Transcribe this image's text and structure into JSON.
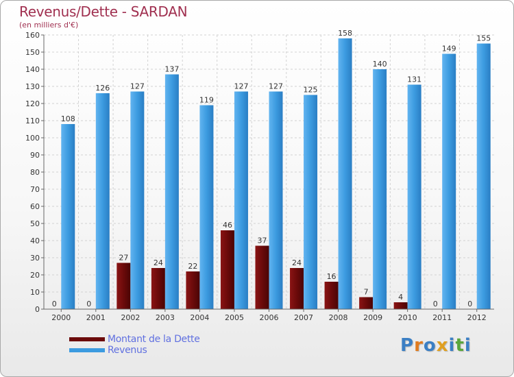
{
  "title": "Revenus/Dette - SARDAN",
  "subtitle": "(en milliers d'€)",
  "brand": {
    "text": "Proxiti",
    "colors": [
      "#3b7fc4",
      "#e07b1f",
      "#3b7fc4",
      "#e0a021",
      "#3b7fc4",
      "#5aa63b",
      "#3b7fc4"
    ]
  },
  "legend": [
    {
      "label": "Montant de la Dette",
      "color": "#6b0a0a"
    },
    {
      "label": "Revenus",
      "color": "#3c9be0"
    }
  ],
  "chart_data": {
    "type": "bar",
    "categories": [
      "2000",
      "2001",
      "2002",
      "2003",
      "2004",
      "2005",
      "2006",
      "2007",
      "2008",
      "2009",
      "2010",
      "2011",
      "2012"
    ],
    "series": [
      {
        "name": "Montant de la Dette",
        "values": [
          0,
          0,
          27,
          24,
          22,
          46,
          37,
          24,
          16,
          7,
          4,
          0,
          0
        ],
        "color": "#6b0a0a"
      },
      {
        "name": "Revenus",
        "values": [
          108,
          126,
          127,
          137,
          119,
          127,
          127,
          125,
          158,
          140,
          131,
          149,
          155
        ],
        "color": "#3c9be0"
      }
    ],
    "ylim": [
      0,
      160
    ],
    "yticks": [
      0,
      10,
      20,
      30,
      40,
      50,
      60,
      70,
      80,
      90,
      100,
      110,
      120,
      130,
      140,
      150,
      160
    ],
    "grid": true,
    "legend_position": "bottom-left"
  }
}
